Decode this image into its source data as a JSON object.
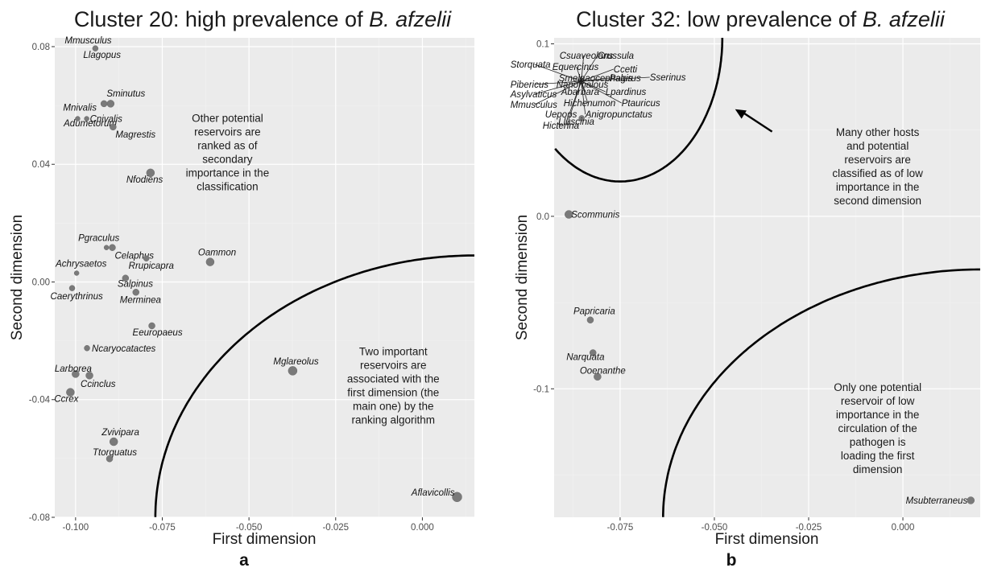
{
  "panels": [
    {
      "title_prefix": "Cluster 20: high prevalence of ",
      "title_species": "B. afzelii",
      "panel_letter": "a"
    },
    {
      "title_prefix": "Cluster 32: low prevalence of ",
      "title_species": "B. afzelii",
      "panel_letter": "b"
    }
  ],
  "chart_data": [
    {
      "type": "scatter",
      "xlabel": "First dimension",
      "ylabel": "Second dimension",
      "xlim": [
        -0.106,
        0.015
      ],
      "ylim": [
        -0.08,
        0.083
      ],
      "xticks": [
        -0.1,
        -0.075,
        -0.05,
        -0.025,
        0.0
      ],
      "xtick_labels": [
        "-0.100",
        "-0.075",
        "-0.050",
        "-0.025",
        "0.000"
      ],
      "yticks": [
        -0.08,
        -0.04,
        0.0,
        0.04,
        0.08
      ],
      "ytick_labels": [
        "-0.08",
        "-0.04",
        "0.00",
        "0.04",
        "0.08"
      ],
      "grid": true,
      "points": [
        {
          "label": "Mmusculus",
          "x": -0.0943,
          "y": 0.0794,
          "size": 3.5
        },
        {
          "label": "Llagopus",
          "x": -0.0943,
          "y": 0.0794,
          "size": 3.5,
          "label_only": true
        },
        {
          "label": "Sminutus",
          "x": -0.0899,
          "y": 0.0606,
          "size": 4.5
        },
        {
          "label": "Mnivalis",
          "x": -0.0994,
          "y": 0.0555,
          "size": 3
        },
        {
          "label": "Cnivalis",
          "x": -0.0968,
          "y": 0.0555,
          "size": 3
        },
        {
          "label": "Adumetorum",
          "x": -0.0918,
          "y": 0.0606,
          "size": 4
        },
        {
          "label": "Magrestis",
          "x": -0.0892,
          "y": 0.0527,
          "size": 4
        },
        {
          "label": "Nfodiens",
          "x": -0.0784,
          "y": 0.0371,
          "size": 5
        },
        {
          "label": "Pgraculus",
          "x": -0.0911,
          "y": 0.0117,
          "size": 3
        },
        {
          "label": "Celaphus",
          "x": -0.0894,
          "y": 0.0117,
          "size": 4
        },
        {
          "label": "Rrupicapra",
          "x": -0.0796,
          "y": 0.008,
          "size": 3.5
        },
        {
          "label": "Oammon",
          "x": -0.0612,
          "y": 0.0068,
          "size": 5
        },
        {
          "label": "Achrysaetos",
          "x": -0.0997,
          "y": 0.003,
          "size": 3
        },
        {
          "label": "Salpinus",
          "x": -0.0856,
          "y": 0.0013,
          "size": 4
        },
        {
          "label": "Caerythrinus",
          "x": -0.101,
          "y": -0.0021,
          "size": 3.5
        },
        {
          "label": "Merminea",
          "x": -0.0826,
          "y": -0.0035,
          "size": 4
        },
        {
          "label": "Eeuropaeus",
          "x": -0.078,
          "y": -0.0149,
          "size": 4
        },
        {
          "label": "Ncaryocatactes",
          "x": -0.0967,
          "y": -0.0225,
          "size": 3.5
        },
        {
          "label": "Mglareolus",
          "x": -0.0374,
          "y": -0.0302,
          "size": 5.5
        },
        {
          "label": "Larborea",
          "x": -0.1,
          "y": -0.0313,
          "size": 4.5
        },
        {
          "label": "Ccinclus",
          "x": -0.096,
          "y": -0.0318,
          "size": 4.5
        },
        {
          "label": "Ccrex",
          "x": -0.1015,
          "y": -0.0375,
          "size": 5
        },
        {
          "label": "Zvivipara",
          "x": -0.089,
          "y": -0.0543,
          "size": 5
        },
        {
          "label": "Ttorquatus",
          "x": -0.0902,
          "y": -0.0601,
          "size": 4
        },
        {
          "label": "Aflavicollis",
          "x": 0.01,
          "y": -0.0731,
          "size": 6
        }
      ],
      "annotations": [
        {
          "lines": [
            "Other potential",
            "reservoirs are",
            "ranked as of",
            "secondary",
            "importance in the",
            "classification"
          ],
          "x": -0.0562,
          "y": 0.0544
        },
        {
          "lines": [
            "Two important",
            "reservoirs are",
            "associated with the",
            "first dimension (the",
            "main one) by the",
            "ranking algorithm"
          ],
          "x": -0.0084,
          "y": -0.0249
        }
      ],
      "curve": {
        "cx": 0.015,
        "cy": -0.08,
        "rx": 0.092,
        "ry": 0.089
      }
    },
    {
      "type": "scatter",
      "xlabel": "First dimension",
      "ylabel": "Second dimension",
      "xlim": [
        -0.0925,
        0.0205
      ],
      "ylim": [
        -0.1745,
        0.1035
      ],
      "xticks": [
        -0.075,
        -0.05,
        -0.025,
        0.0
      ],
      "xtick_labels": [
        "-0.075",
        "-0.050",
        "-0.025",
        "0.000"
      ],
      "yticks": [
        -0.1,
        0.0,
        0.1
      ],
      "ytick_labels": [
        "-0.1",
        "0.0",
        "0.1"
      ],
      "grid": true,
      "points": [
        {
          "label": "Storquata",
          "x": -0.0853,
          "y": 0.0783,
          "size": 4
        },
        {
          "label": "Csuaveolans",
          "x": -0.0853,
          "y": 0.0783,
          "size": 4,
          "label_only": true
        },
        {
          "label": "Crussula",
          "x": -0.0853,
          "y": 0.0783,
          "size": 4,
          "label_only": true
        },
        {
          "label": "Equercinus",
          "x": -0.0853,
          "y": 0.0783,
          "size": 4,
          "label_only": true
        },
        {
          "label": "Ccetti",
          "x": -0.0853,
          "y": 0.0783,
          "size": 4,
          "label_only": true
        },
        {
          "label": "Pibericus",
          "x": -0.0853,
          "y": 0.0783,
          "size": 4,
          "label_only": true
        },
        {
          "label": "Nanomalous",
          "x": -0.0853,
          "y": 0.0783,
          "size": 4,
          "label_only": true
        },
        {
          "label": "Sserinus",
          "x": -0.0853,
          "y": 0.0783,
          "size": 4,
          "label_only": true
        },
        {
          "label": "Smelnaocephalus",
          "x": -0.0853,
          "y": 0.0783,
          "size": 4,
          "label_only": true
        },
        {
          "label": "Pagirus",
          "x": -0.0853,
          "y": 0.0783,
          "size": 4,
          "label_only": true
        },
        {
          "label": "Asylvaticus",
          "x": -0.0853,
          "y": 0.0783,
          "size": 4,
          "label_only": true
        },
        {
          "label": "Abarbara",
          "x": -0.0853,
          "y": 0.0783,
          "size": 4,
          "label_only": true
        },
        {
          "label": "Lpardinus",
          "x": -0.0853,
          "y": 0.0783,
          "size": 4,
          "label_only": true
        },
        {
          "label": "Mmusculus",
          "x": -0.0853,
          "y": 0.0783,
          "size": 4,
          "label_only": true
        },
        {
          "label": "Hichenumon",
          "x": -0.0853,
          "y": 0.0783,
          "size": 4,
          "label_only": true
        },
        {
          "label": "Ptauricus",
          "x": -0.0853,
          "y": 0.0783,
          "size": 4,
          "label_only": true
        },
        {
          "label": "Uepops",
          "x": -0.0853,
          "y": 0.0783,
          "size": 4,
          "label_only": true
        },
        {
          "label": "Anigropunctatus",
          "x": -0.0853,
          "y": 0.0783,
          "size": 4,
          "label_only": true
        },
        {
          "label": "Lluscinia",
          "x": -0.0852,
          "y": 0.0569,
          "size": 3.5
        },
        {
          "label": "Hicterina",
          "x": -0.0853,
          "y": 0.0783,
          "size": 4,
          "label_only": true
        },
        {
          "label": "Scommunis",
          "x": -0.0886,
          "y": 0.0011,
          "size": 5
        },
        {
          "label": "Papricaria",
          "x": -0.0829,
          "y": -0.0601,
          "size": 4
        },
        {
          "label": "Narquata",
          "x": -0.0822,
          "y": -0.0791,
          "size": 4
        },
        {
          "label": "Ooenanthe",
          "x": -0.081,
          "y": -0.093,
          "size": 4.5
        },
        {
          "label": "Msubterraneus",
          "x": 0.018,
          "y": -0.1647,
          "size": 4.5
        }
      ],
      "annotations": [
        {
          "lines": [
            "Many other hosts",
            "and potential",
            "reservoirs are",
            "classified as of low",
            "importance in the",
            "second dimension"
          ],
          "x": -0.0067,
          "y": 0.0466
        },
        {
          "lines": [
            "Only one potential",
            "reservoir of low",
            "importance in the",
            "circulation of the",
            "pathogen is",
            "loading the first",
            "dimension"
          ],
          "x": -0.0067,
          "y": -0.1013
        }
      ],
      "curves": [
        {
          "cx": -0.075,
          "cy": 0.1035,
          "rx": 0.0271,
          "ry": 0.0833,
          "kind": "upper"
        },
        {
          "cx": 0.0205,
          "cy": -0.1745,
          "rx": 0.0841,
          "ry": 0.1437,
          "kind": "lower"
        }
      ],
      "arrow": {
        "from": [
          -0.0347,
          0.0491
        ],
        "to": [
          -0.0445,
          0.0621
        ]
      }
    }
  ]
}
